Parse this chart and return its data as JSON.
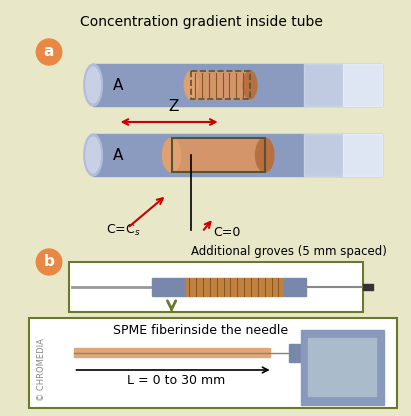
{
  "bg_color": "#e8e8c8",
  "title": "Concentration gradient inside tube",
  "title_fontsize": 10,
  "tube_color_outer": "#8a9bbf",
  "tube_color_inner": "#b0bed8",
  "fiber_color": "#cc8855",
  "fiber_dark": "#8B4513",
  "arrow_color": "#cc0000",
  "label_a": "a",
  "label_b": "b",
  "badge_color": "#e88844",
  "badge_text_color": "white",
  "A_label": "A",
  "Z_label": "Z",
  "CCs_label": "C=C s",
  "C0_label": "C=0",
  "additional_groves_label": "Additional groves (5 mm spaced)",
  "spme_label": "SPME fiberinside the needle",
  "L_label": "L = 0 to 30 mm",
  "chromedia_label": "© CHROMEDIA",
  "box_border_color": "#6a7a2a",
  "needle_color": "#aaaaaa",
  "needle_dark": "#555555",
  "fiber_orange": "#d4956a"
}
